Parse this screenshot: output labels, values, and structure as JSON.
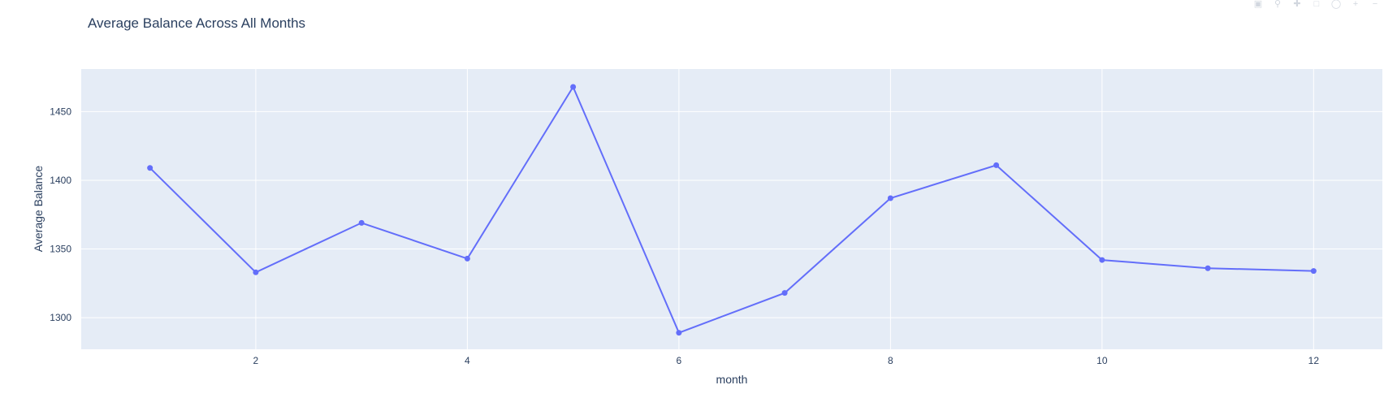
{
  "chart_data": {
    "type": "line",
    "title": "Average Balance Across All Months",
    "xlabel": "month",
    "ylabel": "Average Balance",
    "xlim": [
      0.35,
      12.65
    ],
    "ylim": [
      1277,
      1481
    ],
    "x_ticks": [
      2,
      4,
      6,
      8,
      10,
      12
    ],
    "y_ticks": [
      1300,
      1350,
      1400,
      1450
    ],
    "grid": true,
    "legend": "none",
    "colors": {
      "line": "#636efa",
      "plot_bg": "#e5ecf6",
      "grid": "#ffffff",
      "text": "#2a3f5f"
    },
    "series": [
      {
        "x": [
          1,
          2,
          3,
          4,
          5,
          6,
          7,
          8,
          9,
          10,
          11,
          12
        ],
        "values": [
          1409,
          1333,
          1369,
          1343,
          1468,
          1289,
          1318,
          1387,
          1411,
          1342,
          1336,
          1334
        ]
      }
    ]
  },
  "modebar": {
    "icons": [
      "camera-icon",
      "zoom-icon",
      "pan-icon",
      "box-select-icon",
      "lasso-icon",
      "zoom-in-icon",
      "zoom-out-icon"
    ]
  }
}
